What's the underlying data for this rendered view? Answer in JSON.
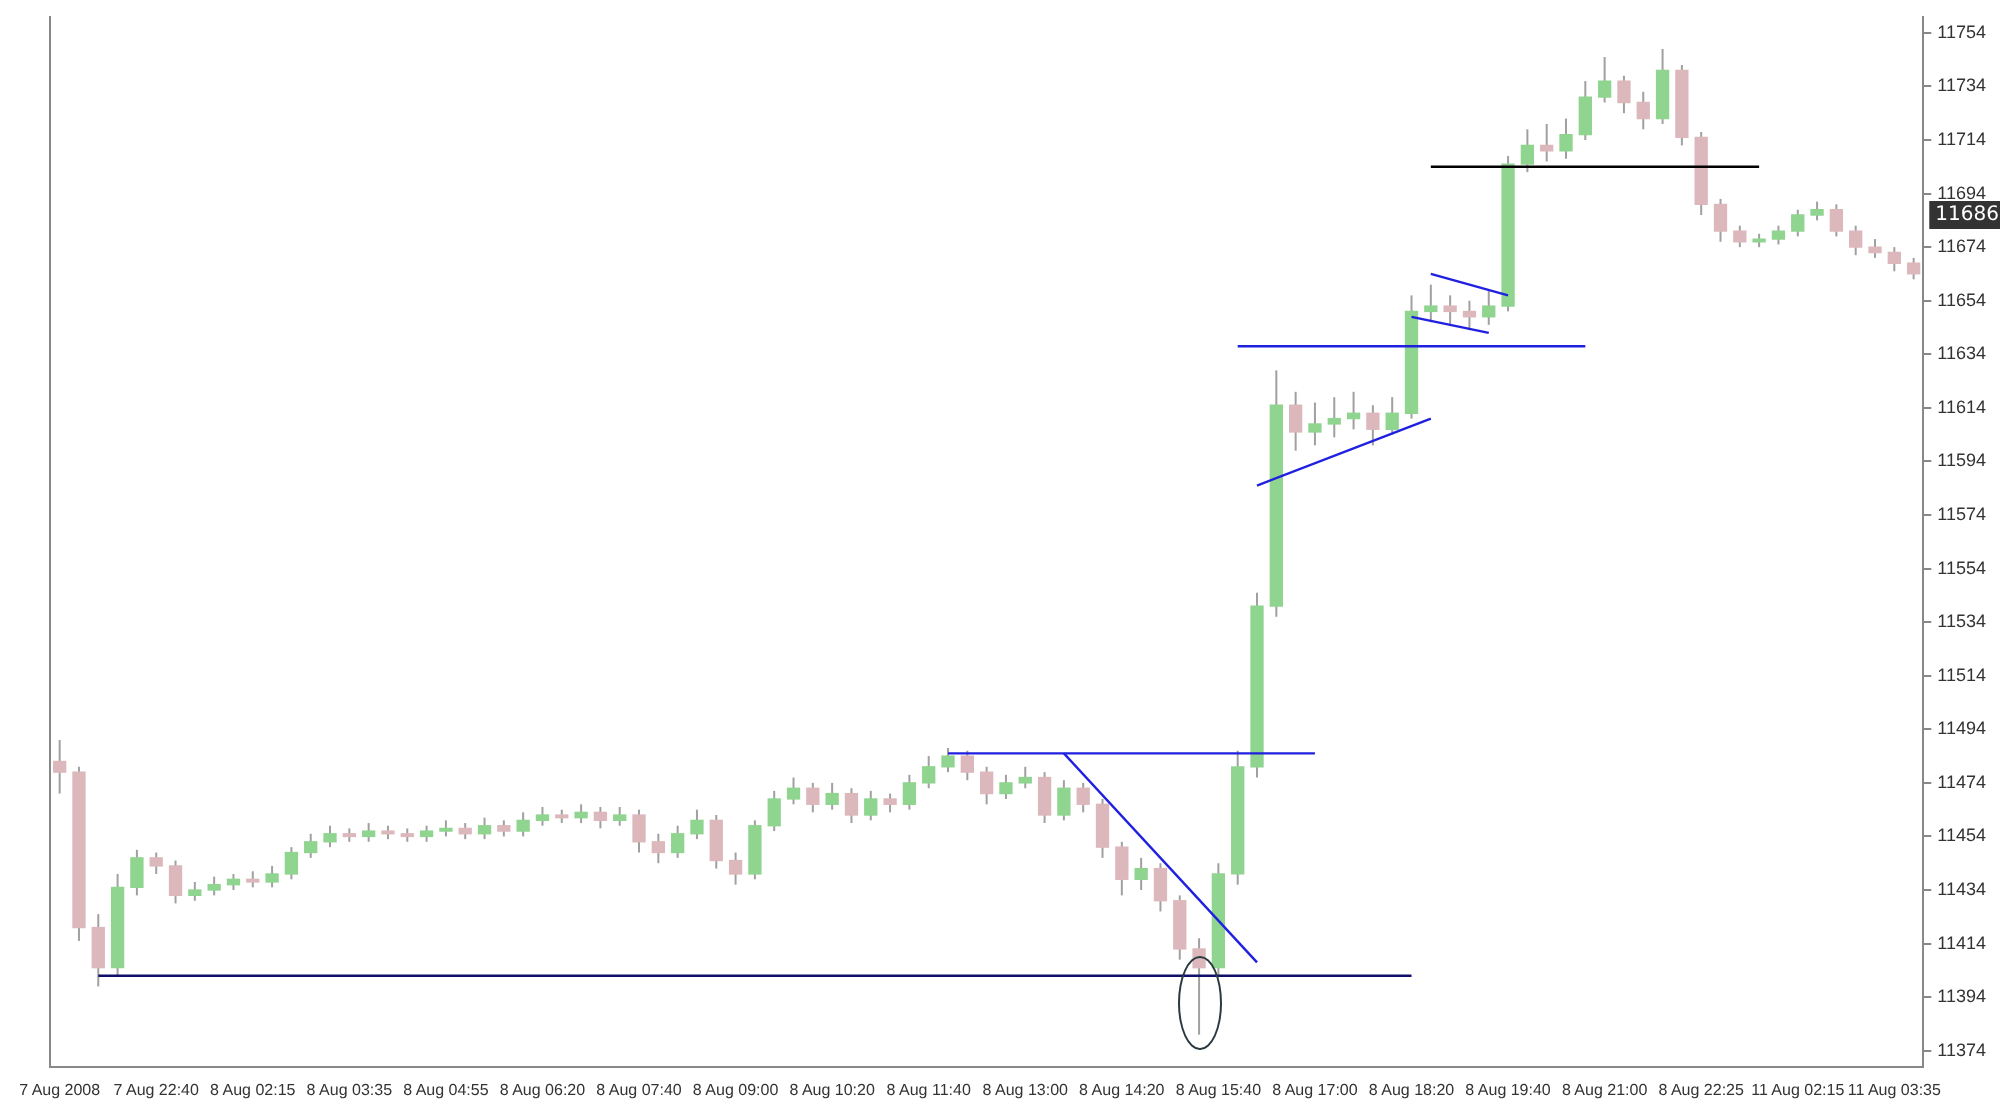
{
  "chart_data": {
    "type": "candlestick",
    "categories": [
      "7 Aug 2008",
      null,
      null,
      null,
      null,
      "7 Aug 22:40",
      null,
      null,
      null,
      null,
      "8 Aug 02:15",
      null,
      null,
      null,
      null,
      "8 Aug 03:35",
      null,
      null,
      null,
      null,
      "8 Aug 04:55",
      null,
      null,
      null,
      null,
      "8 Aug 06:20",
      null,
      null,
      null,
      null,
      "8 Aug 07:40",
      null,
      null,
      null,
      null,
      "8 Aug 09:00",
      null,
      null,
      null,
      null,
      "8 Aug 10:20",
      null,
      null,
      null,
      null,
      "8 Aug 11:40",
      null,
      null,
      null,
      null,
      "8 Aug 13:00",
      null,
      null,
      null,
      null,
      "8 Aug 14:20",
      null,
      null,
      null,
      null,
      "8 Aug 15:40",
      null,
      null,
      null,
      null,
      "8 Aug 17:00",
      null,
      null,
      null,
      null,
      "8 Aug 18:20",
      null,
      null,
      null,
      null,
      "8 Aug 19:40",
      null,
      null,
      null,
      null,
      "8 Aug 21:00",
      null,
      null,
      null,
      null,
      "8 Aug 22:25",
      null,
      null,
      null,
      null,
      "11 Aug 02:15",
      null,
      null,
      null,
      null,
      "11 Aug 03:35",
      null
    ],
    "ylim": [
      11368,
      11760
    ],
    "yticks": [
      11374,
      11394,
      11414,
      11434,
      11454,
      11474,
      11494,
      11514,
      11534,
      11554,
      11574,
      11594,
      11614,
      11634,
      11654,
      11674,
      11694,
      11714,
      11734,
      11754
    ],
    "grid": false,
    "legend": false,
    "annotations": [
      {
        "text": "11686",
        "y": 11686
      }
    ],
    "series": [
      {
        "color": "#a0a0a0",
        "ohlc": [
          [
            11482,
            11490,
            11470,
            11478
          ],
          [
            11478,
            11480,
            11415,
            11420
          ],
          [
            11420,
            11425,
            11398,
            11405
          ],
          [
            11405,
            11440,
            11402,
            11435
          ],
          [
            11435,
            11449,
            11432,
            11446
          ],
          [
            11446,
            11448,
            11440,
            11443
          ],
          [
            11443,
            11445,
            11429,
            11432
          ],
          [
            11432,
            11437,
            11430,
            11434
          ],
          [
            11434,
            11439,
            11432,
            11436
          ],
          [
            11436,
            11440,
            11434,
            11438
          ],
          [
            11438,
            11441,
            11435,
            11437
          ],
          [
            11437,
            11443,
            11435,
            11440
          ],
          [
            11440,
            11450,
            11438,
            11448
          ],
          [
            11448,
            11455,
            11446,
            11452
          ],
          [
            11452,
            11458,
            11450,
            11455
          ],
          [
            11455,
            11457,
            11452,
            11454
          ],
          [
            11454,
            11459,
            11452,
            11456
          ],
          [
            11456,
            11458,
            11453,
            11455
          ],
          [
            11455,
            11457,
            11452,
            11454
          ],
          [
            11454,
            11458,
            11452,
            11456
          ],
          [
            11456,
            11460,
            11454,
            11457
          ],
          [
            11457,
            11459,
            11453,
            11455
          ],
          [
            11455,
            11461,
            11453,
            11458
          ],
          [
            11458,
            11460,
            11454,
            11456
          ],
          [
            11456,
            11463,
            11454,
            11460
          ],
          [
            11460,
            11465,
            11458,
            11462
          ],
          [
            11462,
            11464,
            11459,
            11461
          ],
          [
            11461,
            11466,
            11459,
            11463
          ],
          [
            11463,
            11465,
            11457,
            11460
          ],
          [
            11460,
            11465,
            11458,
            11462
          ],
          [
            11462,
            11464,
            11448,
            11452
          ],
          [
            11452,
            11455,
            11444,
            11448
          ],
          [
            11448,
            11458,
            11446,
            11455
          ],
          [
            11455,
            11464,
            11453,
            11460
          ],
          [
            11460,
            11462,
            11442,
            11445
          ],
          [
            11445,
            11448,
            11436,
            11440
          ],
          [
            11440,
            11460,
            11438,
            11458
          ],
          [
            11458,
            11471,
            11456,
            11468
          ],
          [
            11468,
            11476,
            11466,
            11472
          ],
          [
            11472,
            11474,
            11463,
            11466
          ],
          [
            11466,
            11474,
            11464,
            11470
          ],
          [
            11470,
            11472,
            11459,
            11462
          ],
          [
            11462,
            11471,
            11460,
            11468
          ],
          [
            11468,
            11470,
            11463,
            11466
          ],
          [
            11466,
            11477,
            11464,
            11474
          ],
          [
            11474,
            11484,
            11472,
            11480
          ],
          [
            11480,
            11487,
            11478,
            11484
          ],
          [
            11484,
            11486,
            11475,
            11478
          ],
          [
            11478,
            11480,
            11466,
            11470
          ],
          [
            11470,
            11477,
            11468,
            11474
          ],
          [
            11474,
            11480,
            11472,
            11476
          ],
          [
            11476,
            11478,
            11459,
            11462
          ],
          [
            11462,
            11475,
            11460,
            11472
          ],
          [
            11472,
            11474,
            11463,
            11466
          ],
          [
            11466,
            11468,
            11446,
            11450
          ],
          [
            11450,
            11452,
            11432,
            11438
          ],
          [
            11438,
            11446,
            11434,
            11442
          ],
          [
            11442,
            11444,
            11426,
            11430
          ],
          [
            11430,
            11432,
            11408,
            11412
          ],
          [
            11412,
            11416,
            11380,
            11405
          ],
          [
            11405,
            11444,
            11402,
            11440
          ],
          [
            11440,
            11486,
            11436,
            11480
          ],
          [
            11480,
            11545,
            11476,
            11540
          ],
          [
            11540,
            11628,
            11536,
            11615
          ],
          [
            11615,
            11620,
            11598,
            11605
          ],
          [
            11605,
            11616,
            11600,
            11608
          ],
          [
            11608,
            11618,
            11603,
            11610
          ],
          [
            11610,
            11620,
            11606,
            11612
          ],
          [
            11612,
            11615,
            11600,
            11606
          ],
          [
            11606,
            11618,
            11604,
            11612
          ],
          [
            11612,
            11656,
            11610,
            11650
          ],
          [
            11650,
            11660,
            11646,
            11652
          ],
          [
            11652,
            11656,
            11645,
            11650
          ],
          [
            11650,
            11654,
            11643,
            11648
          ],
          [
            11648,
            11658,
            11645,
            11652
          ],
          [
            11652,
            11708,
            11650,
            11705
          ],
          [
            11705,
            11718,
            11702,
            11712
          ],
          [
            11712,
            11720,
            11706,
            11710
          ],
          [
            11710,
            11722,
            11707,
            11716
          ],
          [
            11716,
            11736,
            11714,
            11730
          ],
          [
            11730,
            11745,
            11728,
            11736
          ],
          [
            11736,
            11738,
            11724,
            11728
          ],
          [
            11728,
            11732,
            11718,
            11722
          ],
          [
            11722,
            11748,
            11720,
            11740
          ],
          [
            11740,
            11742,
            11712,
            11715
          ],
          [
            11715,
            11717,
            11686,
            11690
          ],
          [
            11690,
            11692,
            11676,
            11680
          ],
          [
            11680,
            11682,
            11674,
            11676
          ],
          [
            11676,
            11679,
            11674,
            11677
          ],
          [
            11677,
            11682,
            11675,
            11680
          ],
          [
            11680,
            11688,
            11678,
            11686
          ],
          [
            11686,
            11691,
            11684,
            11688
          ],
          [
            11688,
            11690,
            11678,
            11680
          ],
          [
            11680,
            11682,
            11671,
            11674
          ],
          [
            11674,
            11677,
            11670,
            11672
          ],
          [
            11672,
            11674,
            11665,
            11668
          ],
          [
            11668,
            11670,
            11662,
            11664
          ]
        ],
        "colors": [
          "#dcb8bc",
          "#dcb8bc",
          "#dcb8bc",
          "#8fd48f",
          "#8fd48f",
          "#dcb8bc",
          "#dcb8bc",
          "#8fd48f",
          "#8fd48f",
          "#8fd48f",
          "#dcb8bc",
          "#8fd48f",
          "#8fd48f",
          "#8fd48f",
          "#8fd48f",
          "#dcb8bc",
          "#8fd48f",
          "#dcb8bc",
          "#dcb8bc",
          "#8fd48f",
          "#8fd48f",
          "#dcb8bc",
          "#8fd48f",
          "#dcb8bc",
          "#8fd48f",
          "#8fd48f",
          "#dcb8bc",
          "#8fd48f",
          "#dcb8bc",
          "#8fd48f",
          "#dcb8bc",
          "#dcb8bc",
          "#8fd48f",
          "#8fd48f",
          "#dcb8bc",
          "#dcb8bc",
          "#8fd48f",
          "#8fd48f",
          "#8fd48f",
          "#dcb8bc",
          "#8fd48f",
          "#dcb8bc",
          "#8fd48f",
          "#dcb8bc",
          "#8fd48f",
          "#8fd48f",
          "#8fd48f",
          "#dcb8bc",
          "#dcb8bc",
          "#8fd48f",
          "#8fd48f",
          "#dcb8bc",
          "#8fd48f",
          "#dcb8bc",
          "#dcb8bc",
          "#dcb8bc",
          "#8fd48f",
          "#dcb8bc",
          "#dcb8bc",
          "#dcb8bc",
          "#8fd48f",
          "#8fd48f",
          "#8fd48f",
          "#8fd48f",
          "#dcb8bc",
          "#8fd48f",
          "#8fd48f",
          "#8fd48f",
          "#dcb8bc",
          "#8fd48f",
          "#8fd48f",
          "#8fd48f",
          "#dcb8bc",
          "#dcb8bc",
          "#8fd48f",
          "#8fd48f",
          "#8fd48f",
          "#dcb8bc",
          "#8fd48f",
          "#8fd48f",
          "#8fd48f",
          "#dcb8bc",
          "#dcb8bc",
          "#8fd48f",
          "#dcb8bc",
          "#dcb8bc",
          "#dcb8bc",
          "#dcb8bc",
          "#8fd48f",
          "#8fd48f",
          "#8fd48f",
          "#8fd48f",
          "#dcb8bc",
          "#dcb8bc",
          "#dcb8bc",
          "#dcb8bc",
          "#dcb8bc"
        ]
      },
      {
        "type": "line",
        "color": "#10106a",
        "values": [
          null,
          null,
          11402,
          null,
          null,
          null,
          null,
          null,
          null,
          null,
          null,
          null,
          null,
          null,
          null,
          null,
          null,
          null,
          null,
          null,
          null,
          null,
          null,
          null,
          null,
          null,
          null,
          null,
          null,
          null,
          null,
          null,
          null,
          null,
          null,
          null,
          null,
          null,
          null,
          null,
          null,
          null,
          null,
          null,
          null,
          null,
          null,
          null,
          null,
          null,
          null,
          null,
          null,
          null,
          null,
          null,
          null,
          null,
          null,
          null,
          null,
          null,
          null,
          null,
          null,
          null,
          null,
          null,
          null,
          null,
          11402,
          null,
          null,
          null,
          null,
          null,
          null,
          null,
          null,
          null,
          null,
          null,
          null,
          null,
          null,
          null,
          null,
          null,
          null,
          null,
          null,
          null,
          null,
          null,
          null,
          null,
          null
        ]
      },
      {
        "type": "line",
        "color": "#2020e0",
        "values": [
          null,
          null,
          null,
          null,
          null,
          null,
          null,
          null,
          null,
          null,
          null,
          null,
          null,
          null,
          null,
          null,
          null,
          null,
          null,
          null,
          null,
          null,
          null,
          null,
          null,
          null,
          null,
          null,
          null,
          null,
          null,
          null,
          null,
          null,
          null,
          null,
          null,
          null,
          null,
          null,
          null,
          null,
          null,
          null,
          null,
          null,
          11485,
          null,
          null,
          null,
          null,
          null,
          null,
          null,
          null,
          null,
          null,
          null,
          null,
          null,
          null,
          null,
          null,
          null,
          null,
          11485,
          null,
          null,
          null,
          null,
          null,
          null,
          null,
          null,
          null,
          null,
          null,
          null,
          null,
          null,
          null,
          null,
          null,
          null,
          null,
          null,
          null,
          null,
          null,
          null,
          null,
          null,
          null,
          null,
          null,
          null,
          null
        ]
      },
      {
        "type": "line",
        "color": "#2020e0",
        "values": [
          null,
          null,
          null,
          null,
          null,
          null,
          null,
          null,
          null,
          null,
          null,
          null,
          null,
          null,
          null,
          null,
          null,
          null,
          null,
          null,
          null,
          null,
          null,
          null,
          null,
          null,
          null,
          null,
          null,
          null,
          null,
          null,
          null,
          null,
          null,
          null,
          null,
          null,
          null,
          null,
          null,
          null,
          null,
          null,
          null,
          null,
          null,
          null,
          null,
          null,
          null,
          null,
          11485,
          null,
          null,
          null,
          null,
          null,
          null,
          null,
          null,
          null,
          11407,
          null,
          null,
          null,
          null,
          null,
          null,
          null,
          null,
          null,
          null,
          null,
          null,
          null,
          null,
          null,
          null,
          null,
          null,
          null,
          null,
          null,
          null,
          null,
          null,
          null,
          null,
          null,
          null,
          null,
          null,
          null,
          null,
          null,
          null
        ]
      },
      {
        "type": "line",
        "color": "#2020e0",
        "values": [
          null,
          null,
          null,
          null,
          null,
          null,
          null,
          null,
          null,
          null,
          null,
          null,
          null,
          null,
          null,
          null,
          null,
          null,
          null,
          null,
          null,
          null,
          null,
          null,
          null,
          null,
          null,
          null,
          null,
          null,
          null,
          null,
          null,
          null,
          null,
          null,
          null,
          null,
          null,
          null,
          null,
          null,
          null,
          null,
          null,
          null,
          null,
          null,
          null,
          null,
          null,
          null,
          null,
          null,
          null,
          null,
          null,
          null,
          null,
          null,
          null,
          11637,
          null,
          null,
          null,
          null,
          null,
          null,
          null,
          null,
          null,
          null,
          null,
          null,
          null,
          null,
          null,
          null,
          null,
          11637,
          null,
          null,
          null,
          null,
          null,
          null,
          null,
          null,
          null,
          null,
          null,
          null,
          null,
          null,
          null,
          null,
          null
        ]
      },
      {
        "type": "line",
        "color": "#2020e0",
        "values": [
          null,
          null,
          null,
          null,
          null,
          null,
          null,
          null,
          null,
          null,
          null,
          null,
          null,
          null,
          null,
          null,
          null,
          null,
          null,
          null,
          null,
          null,
          null,
          null,
          null,
          null,
          null,
          null,
          null,
          null,
          null,
          null,
          null,
          null,
          null,
          null,
          null,
          null,
          null,
          null,
          null,
          null,
          null,
          null,
          null,
          null,
          null,
          null,
          null,
          null,
          null,
          null,
          null,
          null,
          null,
          null,
          null,
          null,
          null,
          null,
          null,
          null,
          11585,
          null,
          null,
          null,
          null,
          null,
          null,
          null,
          null,
          11610,
          null,
          null,
          null,
          null,
          null,
          null,
          null,
          null,
          null,
          null,
          null,
          null,
          null,
          null,
          null,
          null,
          null,
          null,
          null,
          null,
          null,
          null,
          null,
          null,
          null
        ]
      },
      {
        "type": "line",
        "color": "#2020e0",
        "values": [
          null,
          null,
          null,
          null,
          null,
          null,
          null,
          null,
          null,
          null,
          null,
          null,
          null,
          null,
          null,
          null,
          null,
          null,
          null,
          null,
          null,
          null,
          null,
          null,
          null,
          null,
          null,
          null,
          null,
          null,
          null,
          null,
          null,
          null,
          null,
          null,
          null,
          null,
          null,
          null,
          null,
          null,
          null,
          null,
          null,
          null,
          null,
          null,
          null,
          null,
          null,
          null,
          null,
          null,
          null,
          null,
          null,
          null,
          null,
          null,
          null,
          null,
          null,
          null,
          null,
          null,
          null,
          null,
          null,
          null,
          null,
          11664,
          null,
          null,
          null,
          11656,
          null,
          null,
          null,
          null,
          null,
          null,
          null,
          null,
          null,
          null,
          null,
          null,
          null,
          null,
          null,
          null,
          null,
          null,
          null,
          null,
          null
        ]
      },
      {
        "type": "line",
        "color": "#2020e0",
        "values": [
          null,
          null,
          null,
          null,
          null,
          null,
          null,
          null,
          null,
          null,
          null,
          null,
          null,
          null,
          null,
          null,
          null,
          null,
          null,
          null,
          null,
          null,
          null,
          null,
          null,
          null,
          null,
          null,
          null,
          null,
          null,
          null,
          null,
          null,
          null,
          null,
          null,
          null,
          null,
          null,
          null,
          null,
          null,
          null,
          null,
          null,
          null,
          null,
          null,
          null,
          null,
          null,
          null,
          null,
          null,
          null,
          null,
          null,
          null,
          null,
          null,
          null,
          null,
          null,
          null,
          null,
          null,
          null,
          null,
          null,
          11648,
          null,
          null,
          null,
          11642,
          null,
          null,
          null,
          null,
          null,
          null,
          null,
          null,
          null,
          null,
          null,
          null,
          null,
          null,
          null,
          null,
          null,
          null,
          null,
          null,
          null,
          null
        ]
      },
      {
        "type": "line",
        "color": "#000000",
        "values": [
          null,
          null,
          null,
          null,
          null,
          null,
          null,
          null,
          null,
          null,
          null,
          null,
          null,
          null,
          null,
          null,
          null,
          null,
          null,
          null,
          null,
          null,
          null,
          null,
          null,
          null,
          null,
          null,
          null,
          null,
          null,
          null,
          null,
          null,
          null,
          null,
          null,
          null,
          null,
          null,
          null,
          null,
          null,
          null,
          null,
          null,
          null,
          null,
          null,
          null,
          null,
          null,
          null,
          null,
          null,
          null,
          null,
          null,
          null,
          null,
          null,
          null,
          null,
          null,
          null,
          null,
          null,
          null,
          null,
          null,
          null,
          11704,
          null,
          null,
          null,
          null,
          null,
          null,
          null,
          null,
          null,
          null,
          null,
          null,
          null,
          null,
          null,
          null,
          11704,
          null,
          null,
          null,
          null,
          null,
          null,
          null,
          null
        ]
      }
    ]
  }
}
